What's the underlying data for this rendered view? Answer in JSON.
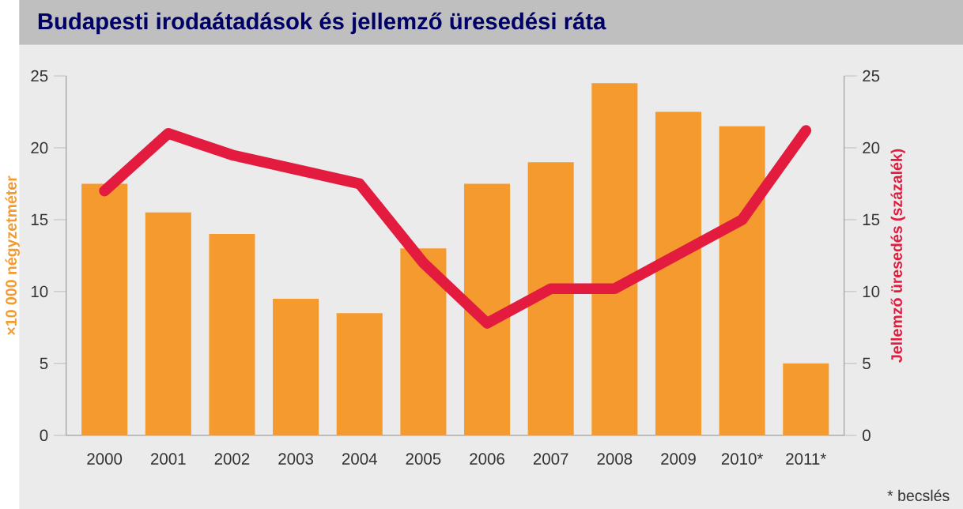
{
  "chart_data": {
    "type": "bar",
    "title": "Budapesti irodaátadások és jellemző üresedési ráta",
    "categories": [
      "2000",
      "2001",
      "2002",
      "2003",
      "2004",
      "2005",
      "2006",
      "2007",
      "2008",
      "2009",
      "2010*",
      "2011*"
    ],
    "ylabel": "×10 000 négyzetméter",
    "y2label": "Jellemző üresedés (százalék)",
    "ylim": [
      0,
      25
    ],
    "yticks": [
      0,
      5,
      10,
      15,
      20,
      25
    ],
    "y2lim": [
      0,
      25
    ],
    "y2ticks": [
      0,
      5,
      10,
      15,
      20,
      25
    ],
    "grid": false,
    "annotations": [
      "* becslés"
    ],
    "series": [
      {
        "color": "#f59a2e",
        "values": [
          17.5,
          15.5,
          14,
          9.5,
          8.5,
          13,
          17.5,
          19,
          24.5,
          22.5,
          21.5,
          5
        ]
      },
      {
        "type": "line",
        "axis": "y2",
        "color": "#e31b3f",
        "values": [
          17,
          21,
          19.5,
          18.5,
          17.5,
          12,
          7.8,
          10.2,
          10.2,
          12.6,
          15,
          21.2
        ]
      }
    ]
  }
}
